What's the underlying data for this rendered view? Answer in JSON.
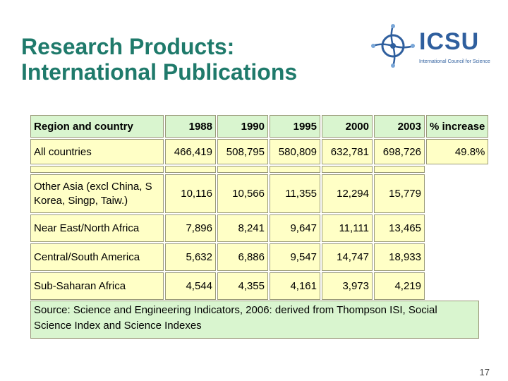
{
  "slide": {
    "title_line1": "Research Products:",
    "title_line2": "International Publications",
    "page_number": "17"
  },
  "logo": {
    "name": "ICSU",
    "subtitle": "International Council for Science",
    "color": "#2f5f9e"
  },
  "table": {
    "header": [
      "Region and country",
      "1988",
      "1990",
      "1995",
      "2000",
      "2003",
      "% increase"
    ],
    "all_countries": [
      "All countries",
      "466,419",
      "508,795",
      "580,809",
      "632,781",
      "698,726",
      "49.8%"
    ],
    "rows": [
      [
        "Other Asia (excl China, S Korea, Singp, Taiw.)",
        "10,116",
        "10,566",
        "11,355",
        "12,294",
        "15,779"
      ],
      [
        "Near East/North Africa",
        "7,896",
        "8,241",
        "9,647",
        "11,111",
        "13,465"
      ],
      [
        "Central/South America",
        "5,632",
        "6,886",
        "9,547",
        "14,747",
        "18,933"
      ],
      [
        "Sub-Saharan Africa",
        "4,544",
        "4,355",
        "4,161",
        "3,973",
        "4,219"
      ]
    ]
  },
  "source": "Source: Science and Engineering Indicators, 2006: derived from Thompson ISI, Social Science Index and Science Indexes",
  "colors": {
    "title": "#1f7a6b",
    "header_bg": "#d9f5cf",
    "cell_bg": "#ffffc6"
  }
}
